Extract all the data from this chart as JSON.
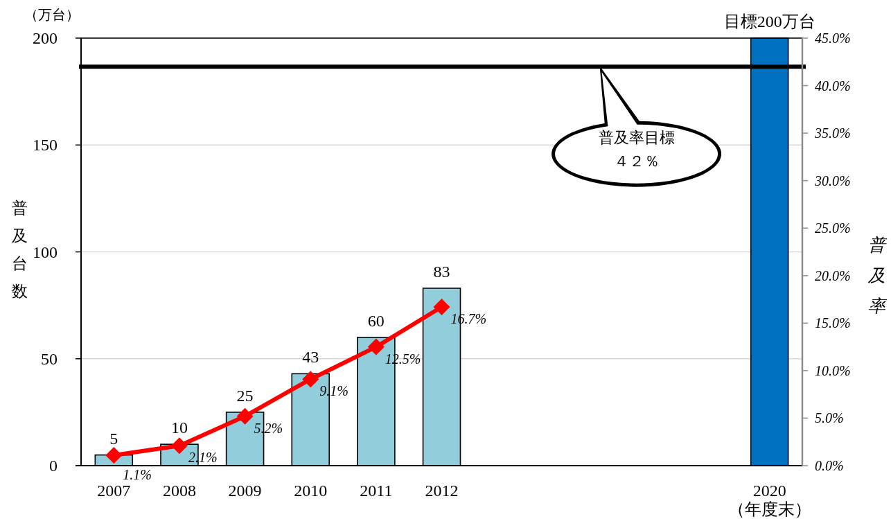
{
  "chart_data": {
    "type": "bar",
    "categories": [
      "2007",
      "2008",
      "2009",
      "2010",
      "2011",
      "2012",
      null,
      null,
      null,
      null,
      "2020\n（年度末）"
    ],
    "series": [
      {
        "colors": [
          "#92cddc",
          "#92cddc",
          "#92cddc",
          "#92cddc",
          "#92cddc",
          "#92cddc",
          null,
          null,
          null,
          null,
          "#0070c0"
        ],
        "values": [
          5,
          10,
          25,
          43,
          60,
          83,
          null,
          null,
          null,
          null,
          200
        ],
        "value_labels": [
          "5",
          "10",
          "25",
          "43",
          "60",
          "83",
          null,
          null,
          null,
          null,
          "目標200万台"
        ]
      },
      {
        "type": "line",
        "axis": "y2",
        "color": "#ff0000",
        "marker": "diamond",
        "values": [
          1.1,
          2.1,
          5.2,
          9.1,
          12.5,
          16.7,
          null,
          null,
          null,
          null,
          null
        ],
        "value_labels": [
          "1.1%",
          "2.1%",
          "5.2%",
          "9.1%",
          "12.5%",
          "16.7%",
          null,
          null,
          null,
          null,
          null
        ]
      }
    ],
    "ylabel": "普及台数",
    "y2label": "普及率",
    "ylim": [
      0,
      200
    ],
    "yticks": [
      0,
      50,
      100,
      150,
      200
    ],
    "y2lim": [
      0,
      45
    ],
    "y2ticks": [
      {
        "value": 0,
        "label": "0.0%"
      },
      {
        "value": 5,
        "label": "5.0%"
      },
      {
        "value": 10,
        "label": "10.0%"
      },
      {
        "value": 15,
        "label": "15.0%"
      },
      {
        "value": 20,
        "label": "20.0%"
      },
      {
        "value": 25,
        "label": "25.0%"
      },
      {
        "value": 30,
        "label": "30.0%"
      },
      {
        "value": 35,
        "label": "35.0%"
      },
      {
        "value": 40,
        "label": "40.0%"
      },
      {
        "value": 45,
        "label": "45.0%"
      }
    ],
    "grid": "y",
    "ref_lines": [
      {
        "axis": "y2",
        "value": 42,
        "label": "普及率目標４２％",
        "color": "#000000"
      }
    ],
    "annotations": [
      "（万台）"
    ]
  }
}
